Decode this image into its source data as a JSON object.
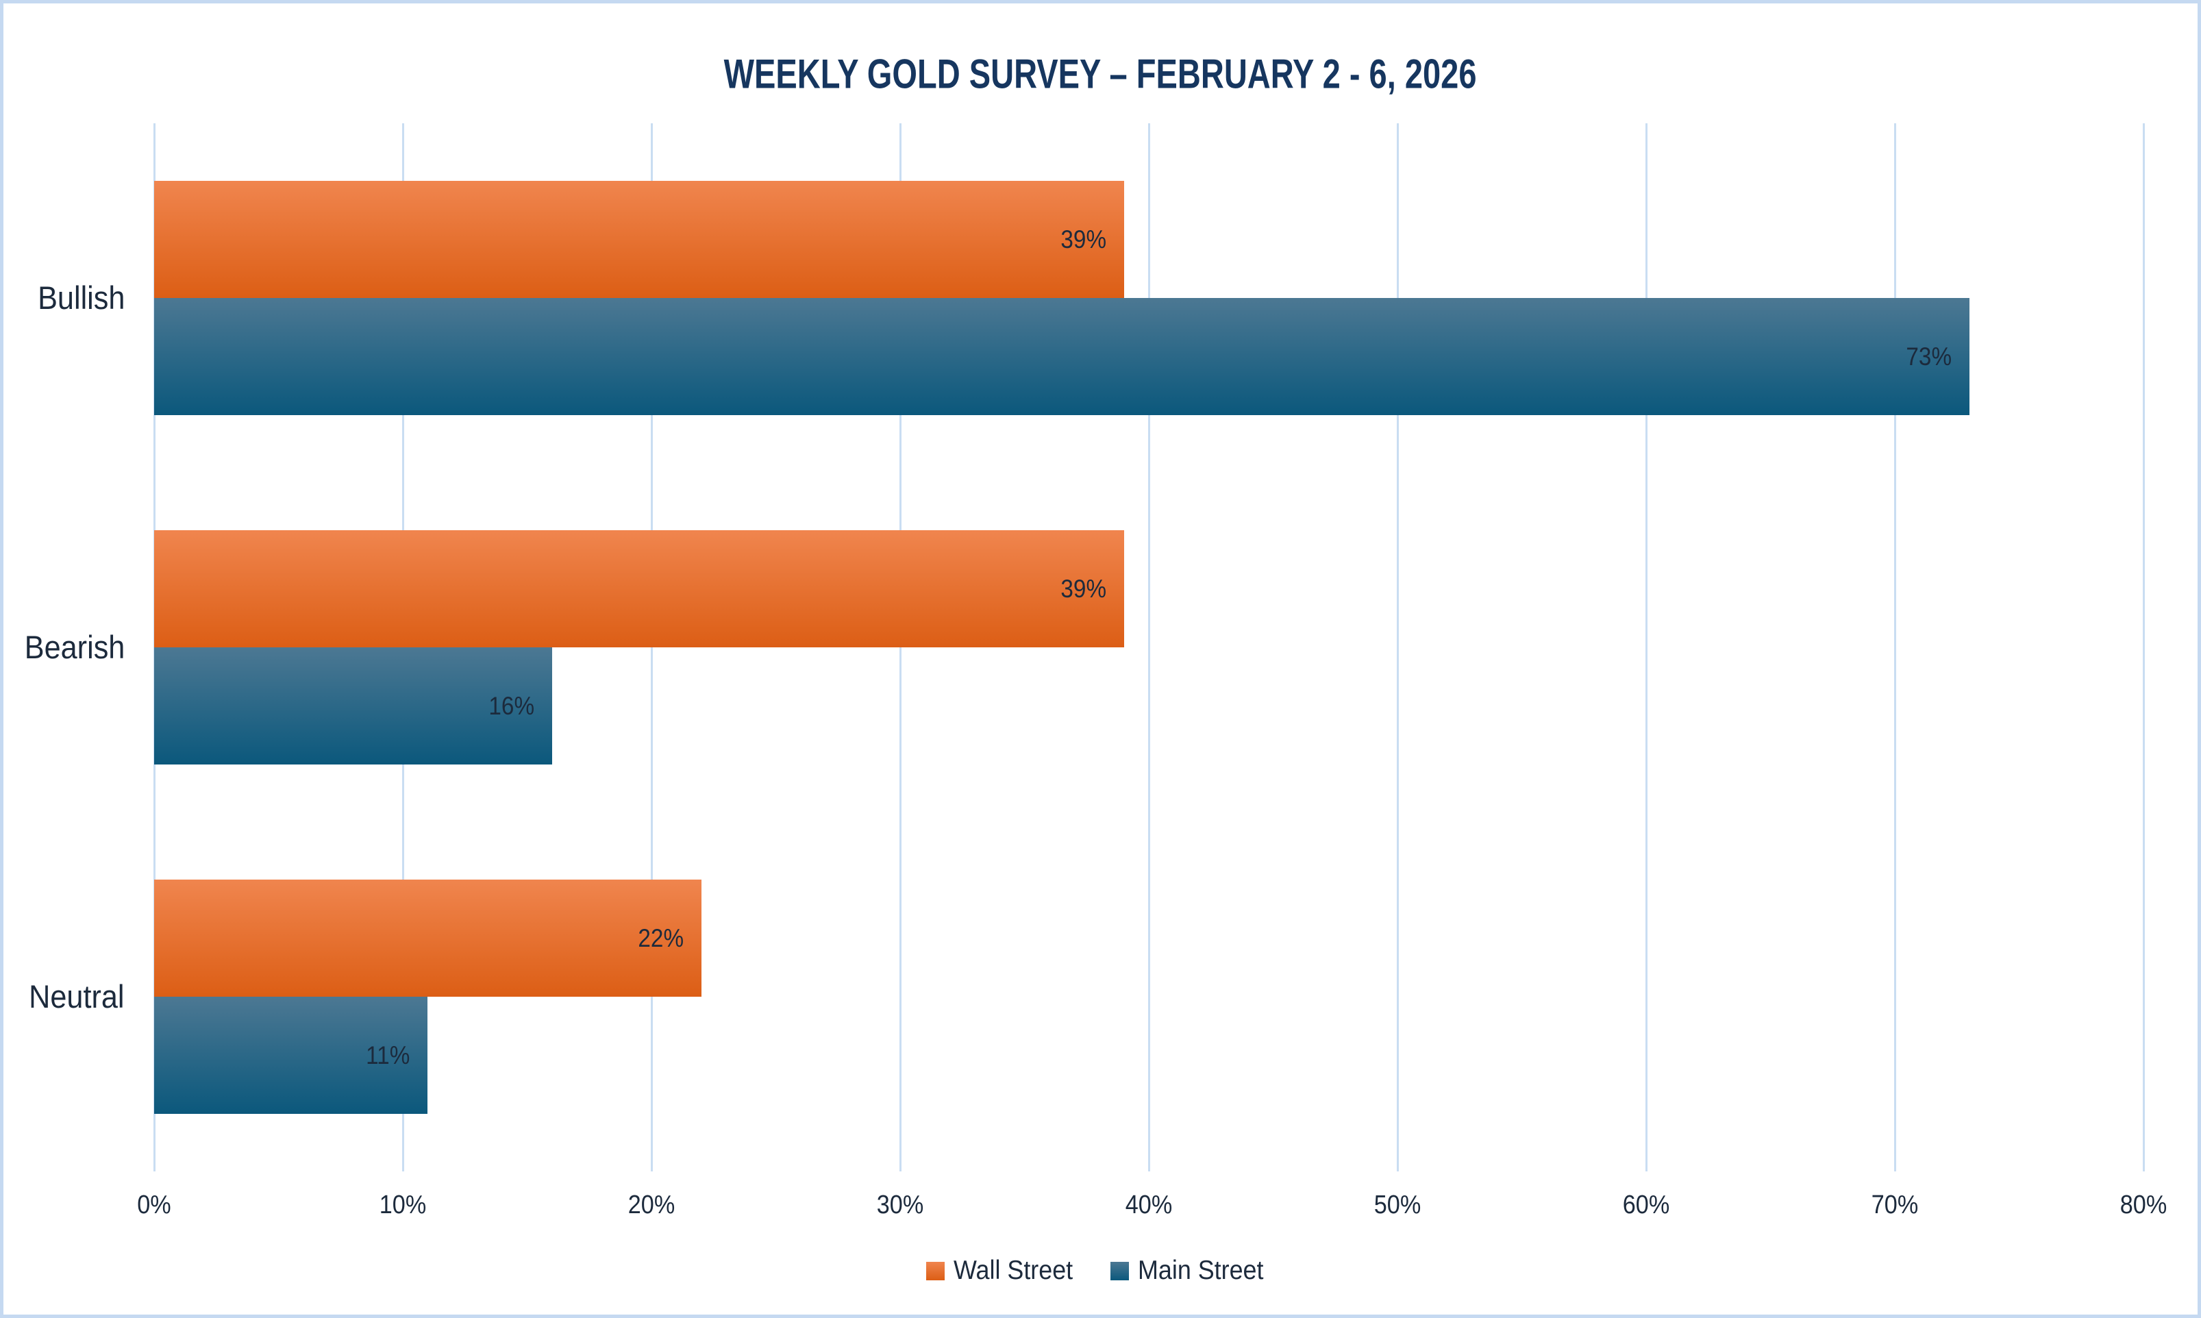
{
  "chart_data": {
    "type": "bar",
    "orientation": "horizontal",
    "title": "WEEKLY GOLD SURVEY – FEBRUARY 2 - 6, 2026",
    "categories": [
      "Bullish",
      "Bearish",
      "Neutral"
    ],
    "series": [
      {
        "name": "Wall Street",
        "values": [
          39,
          39,
          22
        ],
        "color_top": "#f0854e",
        "color_bottom": "#dc5e15"
      },
      {
        "name": "Main Street",
        "values": [
          73,
          16,
          11
        ],
        "color_top": "#4c7893",
        "color_bottom": "#0b587c"
      }
    ],
    "data_labels": [
      [
        "39%",
        "39%",
        "22%"
      ],
      [
        "73%",
        "16%",
        "11%"
      ]
    ],
    "value_axis": {
      "min": 0,
      "max": 80,
      "step": 10,
      "tick_labels": [
        "0%",
        "10%",
        "20%",
        "30%",
        "40%",
        "50%",
        "60%",
        "70%",
        "80%"
      ]
    },
    "grid": true,
    "legend_position": "bottom"
  },
  "colors": {
    "background": "#ffffff",
    "canvas_border": "#c5d9f1",
    "gridline": "#c9ddf2",
    "title_text": "#16365f",
    "label_text": "#1c2a3c"
  }
}
